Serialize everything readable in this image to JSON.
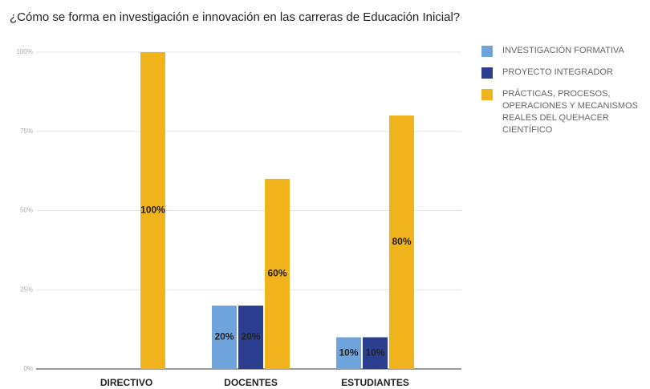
{
  "chart_data": {
    "type": "bar",
    "title": "¿Cómo se forma en investigación e innovación en las carreras de Educación Inicial?",
    "categories": [
      "DIRECTIVO",
      "DOCENTES",
      "ESTUDIANTES"
    ],
    "series": [
      {
        "name": "INVESTIGACIÓN FORMATIVA",
        "color": "#6fa3dc",
        "values": [
          0,
          20,
          10
        ],
        "value_labels": [
          null,
          "20%",
          "10%"
        ]
      },
      {
        "name": "PROYECTO INTEGRADOR",
        "color": "#2c3e8f",
        "values": [
          0,
          20,
          10
        ],
        "value_labels": [
          null,
          "20%",
          "10%"
        ]
      },
      {
        "name": "PRÁCTICAS, PROCESOS, OPERACIONES Y MECANISMOS REALES DEL QUEHACER CIENTÍFICO",
        "color": "#f1b31c",
        "values": [
          100,
          60,
          80
        ],
        "value_labels": [
          "100%",
          "60%",
          "80%"
        ]
      }
    ],
    "ylim": [
      0,
      100
    ],
    "yticks": [
      {
        "value": 0,
        "label": "0%"
      },
      {
        "value": 25,
        "label": "25%"
      },
      {
        "value": 50,
        "label": "50%"
      },
      {
        "value": 75,
        "label": "75%"
      },
      {
        "value": 100,
        "label": "100%"
      }
    ],
    "grid": true,
    "legend": "right"
  }
}
